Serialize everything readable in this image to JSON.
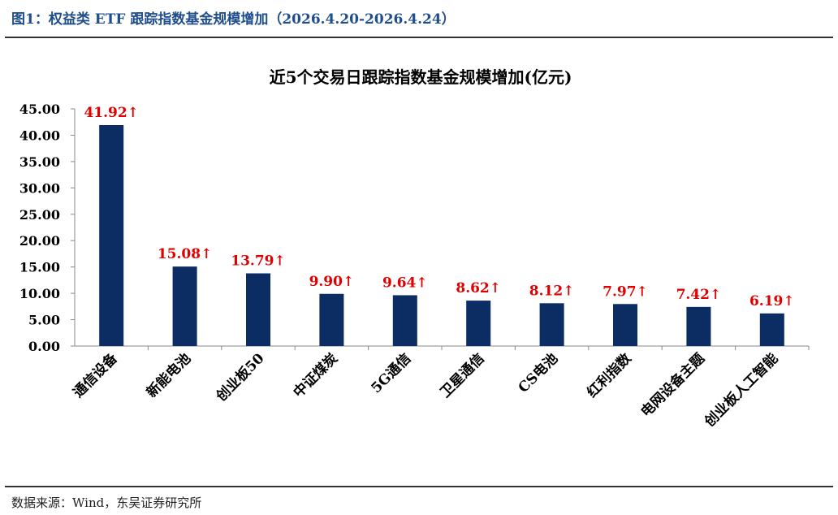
{
  "figure": {
    "caption": "图1：权益类 ETF 跟踪指数基金规模增加（2026.4.20-2026.4.24）",
    "source": "数据来源：Wind，东吴证券研究所"
  },
  "colors": {
    "bar": "#0b2d63",
    "label": "#e00000",
    "axis": "#888888",
    "caption": "#1f4e8c"
  },
  "chart_data": {
    "type": "bar",
    "title": "近5个交易日跟踪指数基金规模增加(亿元)",
    "xlabel": "",
    "ylabel": "",
    "ylim": [
      0,
      45
    ],
    "yticks": [
      "0.00",
      "5.00",
      "10.00",
      "15.00",
      "20.00",
      "25.00",
      "30.00",
      "35.00",
      "40.00",
      "45.00"
    ],
    "categories": [
      "通信设备",
      "新能电池",
      "创业板50",
      "中证煤炭",
      "5G通信",
      "卫星通信",
      "CS电池",
      "红利指数",
      "电网设备主题",
      "创业板人工智能"
    ],
    "values": [
      41.92,
      15.08,
      13.79,
      9.9,
      9.64,
      8.62,
      8.12,
      7.97,
      7.42,
      6.19
    ],
    "data_labels": [
      "41.92↑",
      "15.08↑",
      "13.79↑",
      "9.90↑",
      "9.64↑",
      "8.62↑",
      "8.12↑",
      "7.97↑",
      "7.42↑",
      "6.19↑"
    ],
    "grid": false,
    "legend": "none"
  }
}
